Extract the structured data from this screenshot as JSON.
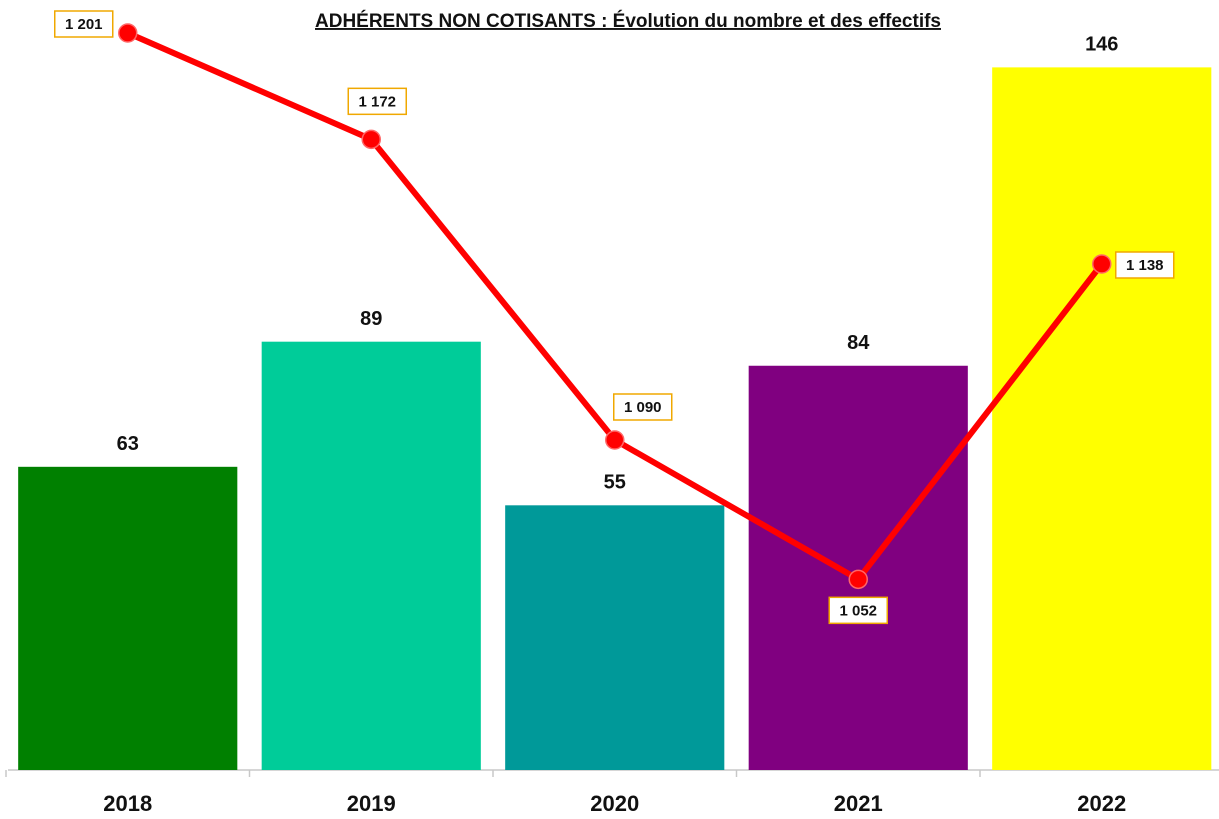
{
  "chart_data": {
    "type": "bar",
    "title": "ADHÉRENTS NON COTISANTS : Évolution du nombre et des effectifs",
    "categories": [
      "2018",
      "2019",
      "2020",
      "2021",
      "2022"
    ],
    "ylim": [
      0,
      160
    ],
    "y2lim": [
      1000,
      1210
    ],
    "series": [
      {
        "type": "bar",
        "colors": [
          "#008000",
          "#00cc99",
          "#009999",
          "#800080",
          "#ffff00"
        ],
        "values": [
          63,
          89,
          55,
          84,
          146
        ]
      },
      {
        "type": "line",
        "axis": "y2",
        "color": "#ff0000",
        "values": [
          1201,
          1172,
          1090,
          1052,
          1138
        ],
        "value_labels": [
          "1 201",
          "1 172",
          "1 090",
          "1 052",
          "1 138"
        ]
      }
    ]
  }
}
